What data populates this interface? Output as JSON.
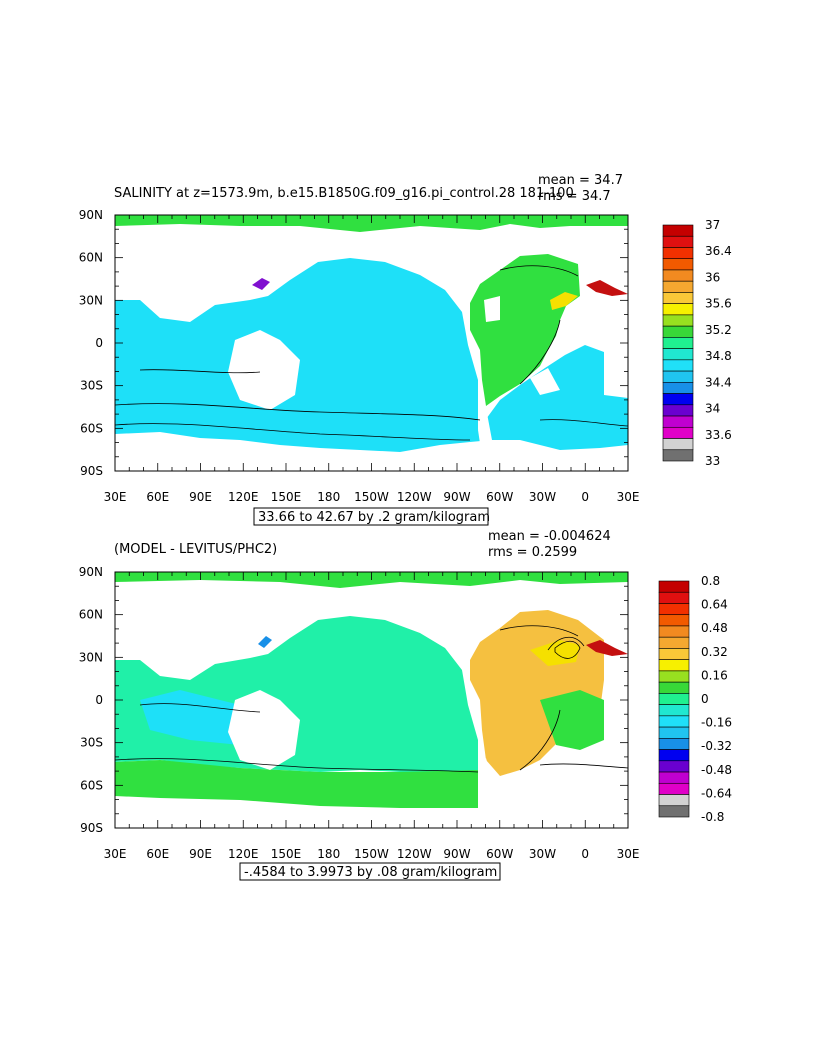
{
  "chart_data": [
    {
      "type": "heatmap",
      "title": "SALINITY at z=1573.9m, b.e15.B1850G.f09_g16.pi_control.28 181-100",
      "stats": {
        "mean": "mean = 34.7",
        "rms": "rms = 34.7"
      },
      "range_label": "33.66 to 42.67 by .2 gram/kilogram",
      "x_ticks": [
        "30E",
        "60E",
        "90E",
        "120E",
        "150E",
        "180",
        "150W",
        "120W",
        "90W",
        "60W",
        "30W",
        "0",
        "30E"
      ],
      "y_ticks": [
        "90N",
        "60N",
        "30N",
        "0",
        "30S",
        "60S",
        "90S"
      ],
      "colorbar": {
        "labels": [
          "37",
          "36.4",
          "36",
          "35.6",
          "35.2",
          "34.8",
          "34.4",
          "34",
          "33.6",
          "33"
        ],
        "colors": [
          "#c40000",
          "#e01010",
          "#f23000",
          "#f25a00",
          "#f28a20",
          "#f5a830",
          "#fac838",
          "#f7f000",
          "#98e020",
          "#38d838",
          "#20f090",
          "#20e8d0",
          "#20e0f8",
          "#20c4f0",
          "#1890e8",
          "#0000f0",
          "#6a00d0",
          "#c000d0",
          "#e000c8",
          "#d2d2d2",
          "#707070"
        ]
      }
    },
    {
      "type": "heatmap",
      "title": "(MODEL - LEVITUS/PHC2)",
      "stats": {
        "mean": "mean = -0.004624",
        "rms": "rms = 0.2599"
      },
      "range_label": "-.4584 to 3.9973 by .08 gram/kilogram",
      "x_ticks": [
        "30E",
        "60E",
        "90E",
        "120E",
        "150E",
        "180",
        "150W",
        "120W",
        "90W",
        "60W",
        "30W",
        "0",
        "30E"
      ],
      "y_ticks": [
        "90N",
        "60N",
        "30N",
        "0",
        "30S",
        "60S",
        "90S"
      ],
      "colorbar": {
        "labels": [
          "0.8",
          "0.64",
          "0.48",
          "0.32",
          "0.16",
          "0",
          "-0.16",
          "-0.32",
          "-0.48",
          "-0.64",
          "-0.8"
        ],
        "colors": [
          "#c40000",
          "#e01010",
          "#f23000",
          "#f25a00",
          "#f28a20",
          "#f5a830",
          "#fac838",
          "#f7f000",
          "#98e020",
          "#38d838",
          "#20f090",
          "#20e8d0",
          "#20e0f8",
          "#20c4f0",
          "#1890e8",
          "#0000f0",
          "#6a00d0",
          "#c000d0",
          "#e000c8",
          "#d2d2d2",
          "#707070"
        ]
      }
    }
  ],
  "colors": {
    "ocean_cyan": "#1ee0f8",
    "ocean_green": "#30e040",
    "aqua": "#20f0a8",
    "atlantic_yellow": "#f5e000",
    "atlantic_orange": "#f5c040",
    "med_red": "#c41010",
    "purple": "#8010d0"
  }
}
